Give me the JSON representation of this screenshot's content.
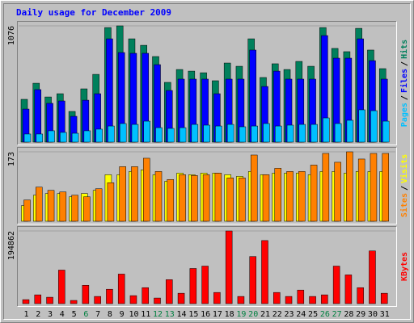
{
  "title": "Daily usage for December 2009",
  "legend_separator": "/",
  "categories": [
    "1",
    "2",
    "3",
    "4",
    "5",
    "6",
    "7",
    "8",
    "9",
    "10",
    "11",
    "12",
    "13",
    "14",
    "15",
    "16",
    "17",
    "18",
    "19",
    "20",
    "21",
    "22",
    "23",
    "24",
    "25",
    "26",
    "27",
    "28",
    "29",
    "30",
    "31"
  ],
  "category_colors": [
    "#000000",
    "#000000",
    "#000000",
    "#000000",
    "#000000",
    "#008040",
    "#000000",
    "#000000",
    "#000000",
    "#000000",
    "#000000",
    "#008040",
    "#008040",
    "#000000",
    "#000000",
    "#000000",
    "#000000",
    "#000000",
    "#008040",
    "#008040",
    "#000000",
    "#000000",
    "#000000",
    "#000000",
    "#000000",
    "#008040",
    "#008040",
    "#000000",
    "#000000",
    "#000000",
    "#000000"
  ],
  "chart_data": [
    {
      "type": "bar",
      "ylim": [
        0,
        1076
      ],
      "yticks": [
        1076
      ],
      "series": [
        {
          "name": "Hits",
          "color": "#00805c",
          "values": [
            396,
            545,
            418,
            448,
            284,
            493,
            627,
            1060,
            1076,
            956,
            896,
            792,
            553,
            672,
            657,
            642,
            568,
            732,
            702,
            956,
            598,
            725,
            672,
            747,
            702,
            1060,
            867,
            837,
            1053,
            852,
            680
          ]
        },
        {
          "name": "Files",
          "color": "#0000ff",
          "values": [
            306,
            486,
            359,
            381,
            239,
            388,
            448,
            956,
            829,
            822,
            822,
            717,
            478,
            583,
            583,
            583,
            448,
            583,
            583,
            852,
            515,
            657,
            583,
            583,
            583,
            986,
            777,
            777,
            956,
            754,
            583
          ]
        },
        {
          "name": "Pages",
          "color": "#00c0ff",
          "values": [
            75,
            75,
            105,
            90,
            82,
            105,
            120,
            149,
            172,
            164,
            194,
            134,
            127,
            134,
            164,
            157,
            149,
            164,
            142,
            149,
            172,
            149,
            157,
            164,
            164,
            224,
            172,
            202,
            299,
            291,
            194
          ]
        }
      ]
    },
    {
      "type": "bar",
      "ylim": [
        0,
        173
      ],
      "yticks": [
        173
      ],
      "series": [
        {
          "name": "Visits",
          "color": "#ffff00",
          "values": [
            39,
            65,
            69,
            69,
            61,
            69,
            77,
            116,
            116,
            124,
            128,
            116,
            100,
            120,
            116,
            120,
            120,
            116,
            112,
            124,
            116,
            120,
            120,
            120,
            116,
            124,
            124,
            120,
            124,
            124,
            124
          ]
        },
        {
          "name": "Sites",
          "color": "#ff8000",
          "values": [
            53,
            85,
            77,
            73,
            65,
            61,
            81,
            96,
            136,
            136,
            157,
            124,
            104,
            116,
            114,
            116,
            120,
            108,
            108,
            165,
            116,
            132,
            124,
            124,
            140,
            169,
            147,
            173,
            155,
            169,
            169
          ]
        }
      ]
    },
    {
      "type": "bar",
      "ylim": [
        0,
        194862
      ],
      "yticks": [
        194862
      ],
      "series": [
        {
          "name": "KBytes",
          "color": "#ff0000",
          "values": [
            10705,
            23551,
            17128,
            89922,
            8564,
            49243,
            19269,
            38538,
            79217,
            21410,
            42820,
            14987,
            64230,
            27833,
            94204,
            100627,
            29974,
            194862,
            19269,
            126319,
            169139,
            29974,
            19269,
            36397,
            19269,
            23551,
            100627,
            77076,
            42820,
            141306,
            27833
          ]
        }
      ]
    }
  ]
}
